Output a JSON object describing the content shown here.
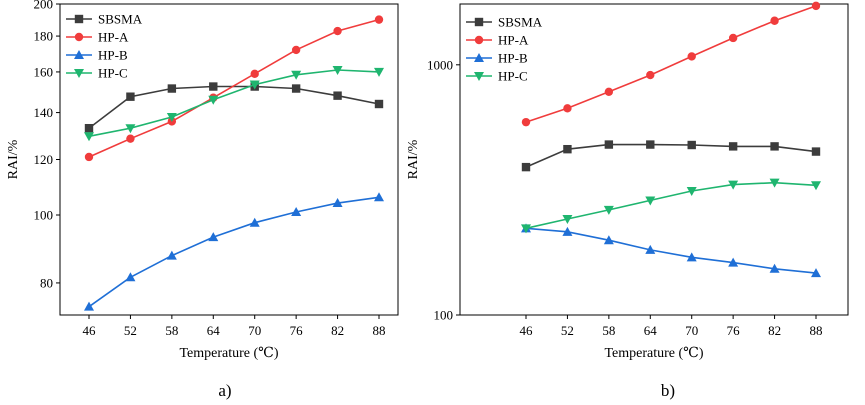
{
  "chart_data": [
    {
      "type": "line",
      "panel_label": "a)",
      "xlabel": "Temperature (℃)",
      "ylabel": "RAI/%",
      "x": [
        46,
        52,
        58,
        64,
        70,
        76,
        82,
        88
      ],
      "x_tick_labels": [
        "46",
        "52",
        "58",
        "64",
        "70",
        "76",
        "82",
        "88"
      ],
      "y_scale": "log",
      "ylim": [
        72,
        200
      ],
      "y_ticks": [
        80,
        100,
        120,
        140,
        160,
        180,
        200
      ],
      "y_tick_labels": [
        "80",
        "100",
        "120",
        "140",
        "160",
        "180",
        "200"
      ],
      "legend_position": "top-left",
      "series": [
        {
          "name": "SBSMA",
          "color": "#3c3c3c",
          "marker": "square",
          "values": [
            133,
            147.5,
            151.5,
            152.5,
            152.5,
            151.5,
            148,
            144
          ]
        },
        {
          "name": "HP-A",
          "color": "#f03c3c",
          "marker": "circle",
          "values": [
            121,
            128.5,
            136,
            147,
            159,
            172,
            183,
            190
          ]
        },
        {
          "name": "HP-B",
          "color": "#1f6fd6",
          "marker": "triangle-up",
          "values": [
            74,
            81.5,
            87.5,
            93,
            97.5,
            101,
            104,
            106
          ]
        },
        {
          "name": "HP-C",
          "color": "#1fb56f",
          "marker": "triangle-down",
          "values": [
            129.5,
            133,
            138,
            146,
            153.5,
            158.5,
            161,
            160
          ]
        }
      ]
    },
    {
      "type": "line",
      "panel_label": "b)",
      "xlabel": "Temperature (℃)",
      "ylabel": "RAI/%",
      "x": [
        46,
        52,
        58,
        64,
        70,
        76,
        82,
        88
      ],
      "x_tick_labels": [
        "46",
        "52",
        "58",
        "64",
        "70",
        "76",
        "82",
        "88"
      ],
      "y_scale": "log",
      "ylim": [
        100,
        1750
      ],
      "y_ticks": [
        100,
        1000
      ],
      "y_tick_labels": [
        "100",
        "1000"
      ],
      "legend_position": "top-left",
      "series": [
        {
          "name": "SBSMA",
          "color": "#3c3c3c",
          "marker": "square",
          "values": [
            390,
            460,
            480,
            480,
            478,
            472,
            472,
            450
          ]
        },
        {
          "name": "HP-A",
          "color": "#f03c3c",
          "marker": "circle",
          "values": [
            590,
            670,
            780,
            910,
            1080,
            1280,
            1500,
            1720
          ]
        },
        {
          "name": "HP-B",
          "color": "#1f6fd6",
          "marker": "triangle-up",
          "values": [
            222,
            215,
            199,
            182,
            170,
            162,
            153,
            147
          ]
        },
        {
          "name": "HP-C",
          "color": "#1fb56f",
          "marker": "triangle-down",
          "values": [
            222,
            242,
            263,
            287,
            313,
            332,
            338,
            330
          ]
        }
      ]
    }
  ]
}
